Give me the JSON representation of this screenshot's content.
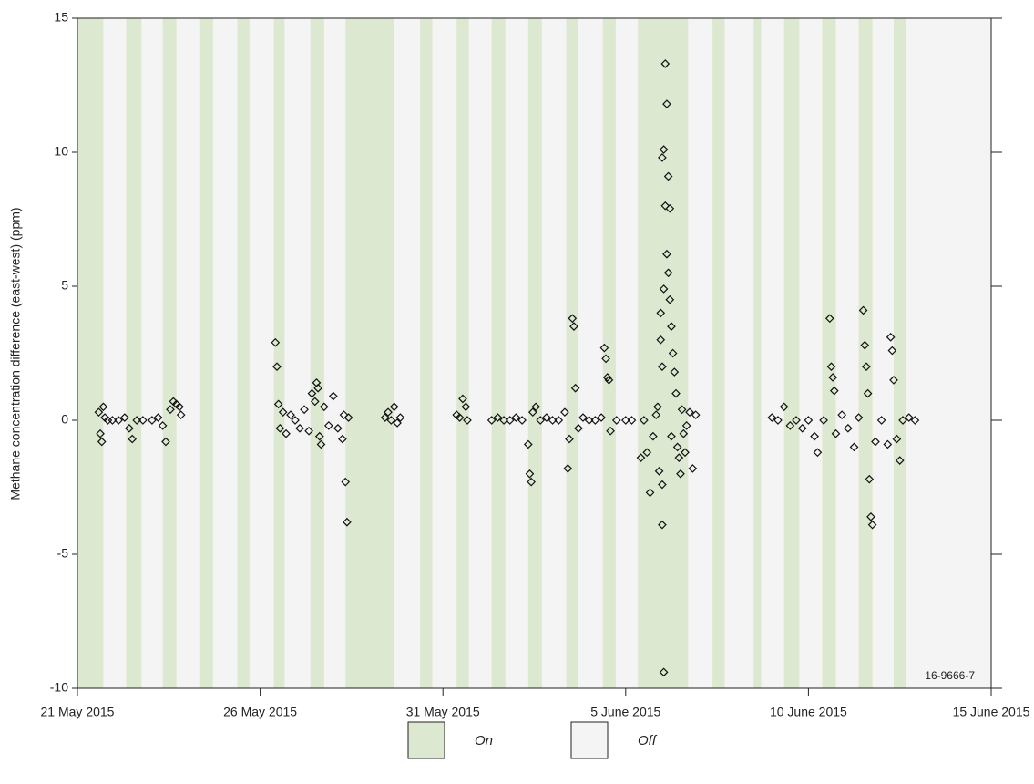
{
  "chart_data": {
    "type": "scatter",
    "ylabel": "Methane concentration difference (east-west) (ppm)",
    "figure_id": "16-9666-7",
    "ylim": [
      -10,
      15
    ],
    "yticks": [
      -10,
      -5,
      0,
      5,
      10,
      15
    ],
    "xlim": [
      "2015-05-21",
      "2015-06-15"
    ],
    "xticks": [
      {
        "value": "2015-05-21",
        "label": "21 May 2015"
      },
      {
        "value": "2015-05-26",
        "label": "26 May 2015"
      },
      {
        "value": "2015-05-31",
        "label": "31 May 2015"
      },
      {
        "value": "2015-06-05",
        "label": "5 June 2015"
      },
      {
        "value": "2015-06-10",
        "label": "10 June 2015"
      },
      {
        "value": "2015-06-15",
        "label": "15 June 2015"
      }
    ],
    "legend": [
      {
        "label": "On",
        "color": "#dce9d0"
      },
      {
        "label": "Off",
        "color": "#f4f4f4"
      }
    ],
    "on_periods": [
      [
        "2015-05-21T00:00",
        "2015-05-21T17:00"
      ],
      [
        "2015-05-22T08:00",
        "2015-05-22T18:00"
      ],
      [
        "2015-05-23T08:00",
        "2015-05-23T17:00"
      ],
      [
        "2015-05-24T08:00",
        "2015-05-24T17:00"
      ],
      [
        "2015-05-25T09:00",
        "2015-05-25T17:00"
      ],
      [
        "2015-05-26T09:00",
        "2015-05-26T16:00"
      ],
      [
        "2015-05-27T09:00",
        "2015-05-27T18:00"
      ],
      [
        "2015-05-28T08:00",
        "2015-05-29T16:00"
      ],
      [
        "2015-05-30T09:00",
        "2015-05-30T17:00"
      ],
      [
        "2015-05-31T09:00",
        "2015-05-31T17:00"
      ],
      [
        "2015-06-01T08:00",
        "2015-06-01T17:00"
      ],
      [
        "2015-06-02T08:00",
        "2015-06-02T17:00"
      ],
      [
        "2015-06-03T09:00",
        "2015-06-03T17:00"
      ],
      [
        "2015-06-04T09:00",
        "2015-06-04T17:30"
      ],
      [
        "2015-06-05T08:00",
        "2015-06-06T17:00"
      ],
      [
        "2015-06-07T09:00",
        "2015-06-07T17:00"
      ],
      [
        "2015-06-08T12:00",
        "2015-06-08T17:00"
      ],
      [
        "2015-06-09T08:00",
        "2015-06-09T18:00"
      ],
      [
        "2015-06-10T09:00",
        "2015-06-10T18:00"
      ],
      [
        "2015-06-11T09:00",
        "2015-06-11T18:00"
      ],
      [
        "2015-06-12T08:00",
        "2015-06-12T16:00"
      ]
    ],
    "x": [
      "2015-05-21T14:00",
      "2015-05-21T15:00",
      "2015-05-21T16:00",
      "2015-05-21T17:00",
      "2015-05-21T18:00",
      "2015-05-21T20:00",
      "2015-05-21T23:00",
      "2015-05-22T03:00",
      "2015-05-22T07:00",
      "2015-05-22T10:00",
      "2015-05-22T12:00",
      "2015-05-22T15:00",
      "2015-05-22T19:00",
      "2015-05-23T01:00",
      "2015-05-23T05:00",
      "2015-05-23T08:00",
      "2015-05-23T10:00",
      "2015-05-23T13:00",
      "2015-05-23T15:00",
      "2015-05-23T17:00",
      "2015-05-23T19:00",
      "2015-05-23T20:00",
      "2015-05-26T10:00",
      "2015-05-26T11:00",
      "2015-05-26T12:00",
      "2015-05-26T13:00",
      "2015-05-26T15:00",
      "2015-05-26T17:00",
      "2015-05-26T20:00",
      "2015-05-26T23:00",
      "2015-05-27T02:00",
      "2015-05-27T05:00",
      "2015-05-27T08:00",
      "2015-05-27T10:00",
      "2015-05-27T12:00",
      "2015-05-27T13:00",
      "2015-05-27T14:00",
      "2015-05-27T15:00",
      "2015-05-27T16:00",
      "2015-05-27T18:00",
      "2015-05-27T21:00",
      "2015-05-28T00:00",
      "2015-05-28T03:00",
      "2015-05-28T06:00",
      "2015-05-28T07:00",
      "2015-05-28T08:00",
      "2015-05-28T09:00",
      "2015-05-28T10:00",
      "2015-05-29T10:00",
      "2015-05-29T12:00",
      "2015-05-29T14:00",
      "2015-05-29T16:00",
      "2015-05-29T18:00",
      "2015-05-29T20:00",
      "2015-05-31T09:00",
      "2015-05-31T11:00",
      "2015-05-31T13:00",
      "2015-05-31T15:00",
      "2015-05-31T16:00",
      "2015-06-01T08:00",
      "2015-06-01T12:00",
      "2015-06-01T16:00",
      "2015-06-01T20:00",
      "2015-06-02T00:00",
      "2015-06-02T04:00",
      "2015-06-02T08:00",
      "2015-06-02T09:00",
      "2015-06-02T10:00",
      "2015-06-02T11:00",
      "2015-06-02T13:00",
      "2015-06-02T16:00",
      "2015-06-02T20:00",
      "2015-06-03T00:00",
      "2015-06-03T04:00",
      "2015-06-03T08:00",
      "2015-06-03T10:00",
      "2015-06-03T11:00",
      "2015-06-03T13:00",
      "2015-06-03T14:00",
      "2015-06-03T15:00",
      "2015-06-03T17:00",
      "2015-06-03T20:00",
      "2015-06-04T00:00",
      "2015-06-04T04:00",
      "2015-06-04T08:00",
      "2015-06-04T10:00",
      "2015-06-04T11:00",
      "2015-06-04T12:00",
      "2015-06-04T13:00",
      "2015-06-04T14:00",
      "2015-06-04T18:00",
      "2015-06-05T00:00",
      "2015-06-05T04:00",
      "2015-06-05T10:00",
      "2015-06-05T12:00",
      "2015-06-05T14:00",
      "2015-06-05T16:00",
      "2015-06-05T18:00",
      "2015-06-05T20:00",
      "2015-06-05T21:00",
      "2015-06-05T22:00",
      "2015-06-05T23:00",
      "2015-06-05T23:00",
      "2015-06-06T00:00",
      "2015-06-06T00:00",
      "2015-06-06T00:00",
      "2015-06-06T00:00",
      "2015-06-06T01:00",
      "2015-06-06T01:00",
      "2015-06-06T01:00",
      "2015-06-06T02:00",
      "2015-06-06T02:00",
      "2015-06-06T03:00",
      "2015-06-06T03:00",
      "2015-06-06T04:00",
      "2015-06-06T04:00",
      "2015-06-06T05:00",
      "2015-06-06T05:00",
      "2015-06-06T06:00",
      "2015-06-06T06:00",
      "2015-06-06T07:00",
      "2015-06-06T08:00",
      "2015-06-06T09:00",
      "2015-06-06T10:00",
      "2015-06-06T11:00",
      "2015-06-06T12:00",
      "2015-06-06T13:00",
      "2015-06-06T14:00",
      "2015-06-06T15:00",
      "2015-06-06T16:00",
      "2015-06-06T18:00",
      "2015-06-06T20:00",
      "2015-06-06T22:00",
      "2015-06-09T00:00",
      "2015-06-09T04:00",
      "2015-06-09T08:00",
      "2015-06-09T12:00",
      "2015-06-09T16:00",
      "2015-06-09T20:00",
      "2015-06-10T00:00",
      "2015-06-10T04:00",
      "2015-06-10T06:00",
      "2015-06-10T10:00",
      "2015-06-10T14:00",
      "2015-06-10T15:00",
      "2015-06-10T16:00",
      "2015-06-10T17:00",
      "2015-06-10T18:00",
      "2015-06-10T22:00",
      "2015-06-11T02:00",
      "2015-06-11T06:00",
      "2015-06-11T09:00",
      "2015-06-11T12:00",
      "2015-06-11T13:00",
      "2015-06-11T14:00",
      "2015-06-11T15:00",
      "2015-06-11T16:00",
      "2015-06-11T17:00",
      "2015-06-11T18:00",
      "2015-06-11T20:00",
      "2015-06-12T00:00",
      "2015-06-12T04:00",
      "2015-06-12T06:00",
      "2015-06-12T07:00",
      "2015-06-12T08:00",
      "2015-06-12T10:00",
      "2015-06-12T12:00",
      "2015-06-12T14:00",
      "2015-06-12T18:00",
      "2015-06-12T22:00"
    ],
    "values": [
      0.3,
      -0.5,
      -0.8,
      0.5,
      0.1,
      0.0,
      0.0,
      0.0,
      0.1,
      -0.3,
      -0.7,
      0.0,
      0.0,
      0.0,
      0.1,
      -0.2,
      -0.8,
      0.4,
      0.7,
      0.6,
      0.5,
      0.2,
      2.9,
      2.0,
      0.6,
      -0.3,
      0.3,
      -0.5,
      0.2,
      0.0,
      -0.3,
      0.4,
      -0.4,
      1.0,
      0.7,
      1.4,
      1.2,
      -0.6,
      -0.9,
      0.5,
      -0.2,
      0.9,
      -0.3,
      -0.7,
      0.2,
      -2.3,
      -3.8,
      0.1,
      0.1,
      0.3,
      0.0,
      0.5,
      -0.1,
      0.1,
      0.2,
      0.1,
      0.8,
      0.5,
      0.0,
      0.0,
      0.1,
      0.0,
      0.0,
      0.1,
      0.0,
      -0.9,
      -2.0,
      -2.3,
      0.3,
      0.5,
      0.0,
      0.1,
      0.0,
      0.0,
      0.3,
      -1.8,
      -0.7,
      3.8,
      3.5,
      1.2,
      -0.3,
      0.1,
      0.0,
      0.0,
      0.1,
      2.7,
      2.3,
      1.6,
      1.5,
      -0.4,
      0.0,
      0.0,
      0.0,
      -1.4,
      0.0,
      -1.2,
      -2.7,
      -0.6,
      0.2,
      0.5,
      -1.9,
      3.0,
      4.0,
      9.8,
      -3.9,
      2.0,
      -2.4,
      10.1,
      -9.4,
      4.9,
      13.3,
      8.0,
      11.8,
      6.2,
      9.1,
      5.5,
      7.9,
      4.5,
      3.5,
      -0.6,
      2.5,
      1.8,
      1.0,
      -1.0,
      -1.4,
      -2.0,
      0.4,
      -0.5,
      -1.2,
      -0.2,
      0.3,
      -1.8,
      0.2,
      0.1,
      0.0,
      0.5,
      -0.2,
      0.0,
      -0.3,
      0.0,
      -0.6,
      -1.2,
      0.0,
      3.8,
      2.0,
      1.6,
      1.1,
      -0.5,
      0.2,
      -0.3,
      -1.0,
      0.1,
      4.1,
      2.8,
      2.0,
      1.0,
      -2.2,
      -3.6,
      -3.9,
      -0.8,
      0.0,
      -0.9,
      3.1,
      2.6,
      1.5,
      -0.7,
      -1.5,
      0.0,
      0.1,
      0.0
    ]
  }
}
